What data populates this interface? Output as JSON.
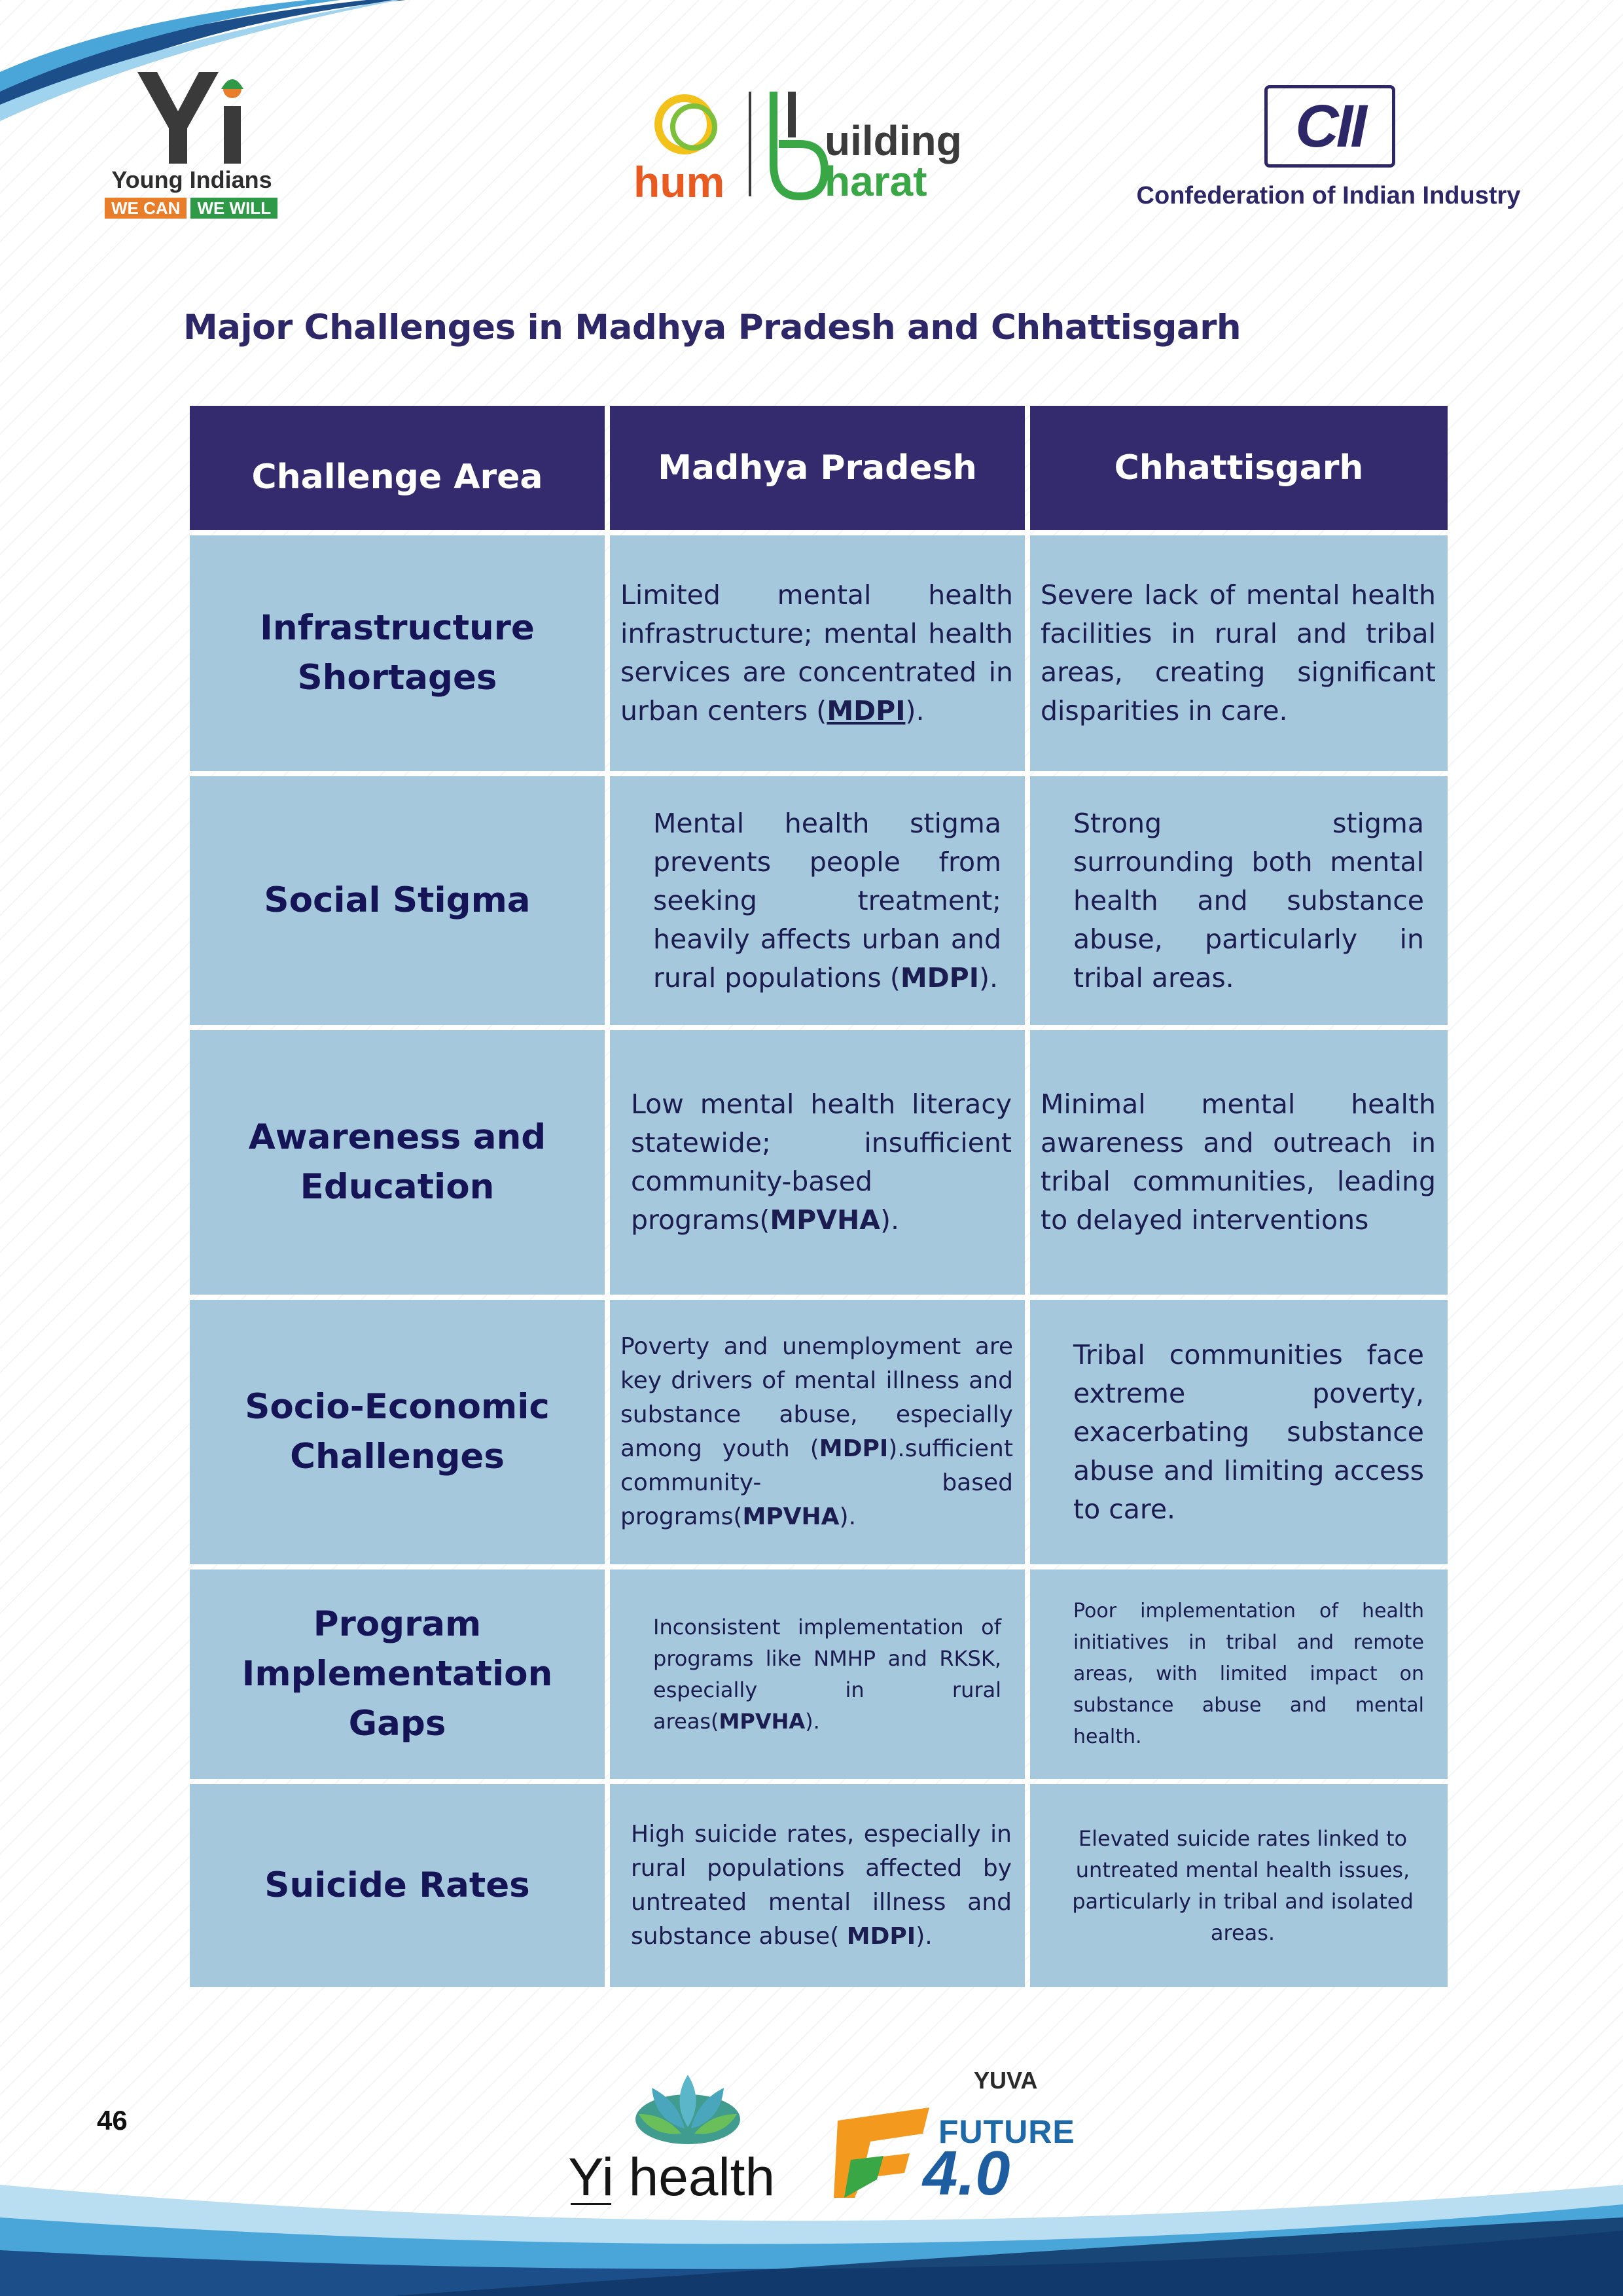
{
  "header": {
    "yi_logo": {
      "name": "Young Indians",
      "tag_left": "WE CAN",
      "tag_right": "WE WILL"
    },
    "hum_logo": {
      "left_word": "hum",
      "right_word_top": "uilding",
      "right_word_bottom": "harat"
    },
    "cii_logo": {
      "mark": "CII",
      "name": "Confederation of Indian Industry"
    }
  },
  "title": "Major Challenges in Madhya Pradesh and Chhattisgarh",
  "table": {
    "headers": [
      "Challenge Area",
      "Madhya Pradesh",
      "Chhattisgarh"
    ],
    "rows": [
      {
        "area": "Infrastructure Shortages",
        "mp_text": "Limited mental health infrastructure; mental health services are concentrated in urban centers (",
        "mp_ref": "MDPI",
        "mp_end": ").",
        "cg_text": "Severe lack of mental health facilities in rural and tribal areas, creating significant disparities in care."
      },
      {
        "area": "Social Stigma",
        "mp_text": "Mental health stigma prevents people from seeking treatment; heavily affects urban and rural populations (",
        "mp_ref": "MDPI",
        "mp_end": ").",
        "cg_text": "Strong stigma surrounding both mental health and substance abuse, particularly in tribal areas."
      },
      {
        "area": "Awareness and Education",
        "mp_text": "Low mental health literacy statewide; insufficient community-based programs(",
        "mp_ref": "MPVHA",
        "mp_end": ").",
        "cg_text": "Minimal mental health awareness and outreach in tribal communities, leading to delayed interventions"
      },
      {
        "area": "Socio-Economic Challenges",
        "mp_text": "Poverty and unemployment are key drivers of mental illness and substance abuse, especially among youth (",
        "mp_ref": "MDPI",
        "mp_mid": ").sufficient community- based programs(",
        "mp_ref2": "MPVHA",
        "mp_end": ").",
        "cg_text": "Tribal communities face extreme poverty, exacerbating substance abuse and limiting access to care."
      },
      {
        "area": "Program Implementation Gaps",
        "mp_text": "Inconsistent implementation of programs like NMHP and RKSK, especially in rural areas(",
        "mp_ref": "MPVHA",
        "mp_end": ").",
        "cg_text": "Poor implementation of health initiatives in tribal and remote areas, with limited impact on substance abuse and mental health."
      },
      {
        "area": "Suicide Rates",
        "mp_text": "High suicide rates, especially in rural populations affected by untreated mental illness and substance abuse( ",
        "mp_ref": "MDPI",
        "mp_end": ").",
        "cg_text": "Elevated suicide rates linked to untreated mental health issues, particularly in tribal and isolated areas."
      }
    ]
  },
  "footer": {
    "page_number": "46",
    "yi_health": "Yi health",
    "yuva": "YUVA",
    "future_word": "FUTURE",
    "future_version": "4.0"
  },
  "colors": {
    "header_bg": "#342b6f",
    "cell_bg": "#a6c8dc",
    "title": "#2e2767",
    "area_text": "#151456"
  }
}
